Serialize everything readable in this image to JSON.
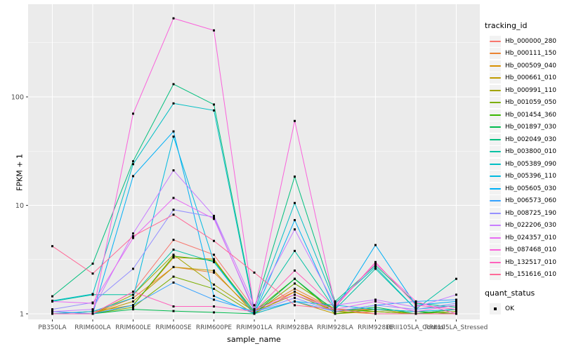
{
  "figure": {
    "background": "#FFFFFF",
    "panel_background": "#EBEBEB",
    "grid_color": "#FFFFFF",
    "tick_color": "#333333",
    "tick_label_color": "#4D4D4D",
    "text_color": "#000000",
    "marker_color": "#000000",
    "legend_key_background": "#F2F2F2"
  },
  "chart_data": {
    "type": "line",
    "title": "",
    "xlabel": "sample_name",
    "ylabel": "FPKM + 1",
    "y_scale": "log10",
    "ylim": [
      0.89,
      712
    ],
    "y_ticks": [
      1,
      10,
      100
    ],
    "y_minor_ticks": [
      3.162,
      31.62,
      316.2
    ],
    "grid": "on",
    "legend_position": "right",
    "categories": [
      "PB350LA",
      "RRIM600LA",
      "RRIM600LE",
      "RRIM600SE",
      "RRIM600PE",
      "RRIM901LA",
      "RRIM928BA",
      "RRIM928LA",
      "RRIM928LE",
      "RRII105LA_Control",
      "RRII105LA_Stressed"
    ],
    "series": [
      {
        "name": "Hb_000000_280",
        "color": "#F8766D",
        "values": [
          1.05,
          1.0,
          1.6,
          4.8,
          3.5,
          1.1,
          1.6,
          1.1,
          1.1,
          1.05,
          1.0
        ]
      },
      {
        "name": "Hb_000111_150",
        "color": "#EA8331",
        "values": [
          1.0,
          1.0,
          1.4,
          2.7,
          2.4,
          1.05,
          1.7,
          1.1,
          1.05,
          1.0,
          1.0
        ]
      },
      {
        "name": "Hb_000509_040",
        "color": "#D89000",
        "values": [
          1.0,
          1.05,
          1.2,
          3.3,
          3.2,
          1.0,
          1.6,
          1.05,
          1.0,
          1.0,
          1.05
        ]
      },
      {
        "name": "Hb_000661_010",
        "color": "#C09B00",
        "values": [
          1.0,
          1.0,
          1.3,
          2.7,
          2.5,
          1.0,
          1.3,
          1.0,
          1.05,
          1.0,
          1.1
        ]
      },
      {
        "name": "Hb_000991_110",
        "color": "#A3A500",
        "values": [
          1.0,
          1.0,
          1.5,
          3.5,
          1.86,
          1.05,
          1.5,
          1.05,
          1.1,
          1.0,
          1.0
        ]
      },
      {
        "name": "Hb_001059_050",
        "color": "#7CAE00",
        "values": [
          1.0,
          1.0,
          1.15,
          2.2,
          1.7,
          1.0,
          1.9,
          1.1,
          1.05,
          1.0,
          1.05
        ]
      },
      {
        "name": "Hb_001454_360",
        "color": "#39B600",
        "values": [
          1.0,
          1.0,
          1.2,
          3.4,
          3.1,
          1.05,
          2.1,
          1.0,
          1.1,
          1.05,
          1.0
        ]
      },
      {
        "name": "Hb_001897_030",
        "color": "#00BB4E",
        "values": [
          1.0,
          1.0,
          1.1,
          1.06,
          1.03,
          1.0,
          2.1,
          1.05,
          1.15,
          1.0,
          1.1
        ]
      },
      {
        "name": "Hb_002049_030",
        "color": "#00BF7D",
        "values": [
          1.45,
          2.9,
          25.5,
          131,
          85,
          1.1,
          18.4,
          1.3,
          2.8,
          1.25,
          1.15
        ]
      },
      {
        "name": "Hb_003800_010",
        "color": "#00C1A3",
        "values": [
          1.3,
          1.5,
          1.5,
          3.9,
          3.0,
          1.05,
          3.8,
          1.1,
          2.6,
          1.1,
          2.1
        ]
      },
      {
        "name": "Hb_005389_090",
        "color": "#00BFC4",
        "values": [
          1.32,
          1.52,
          24,
          87,
          75,
          1.05,
          10.5,
          1.25,
          2.7,
          1.1,
          1.2
        ]
      },
      {
        "name": "Hb_005396_110",
        "color": "#00BAE0",
        "values": [
          1.0,
          1.05,
          1.4,
          43,
          3.0,
          1.0,
          1.3,
          1.2,
          1.1,
          1.05,
          1.1
        ]
      },
      {
        "name": "Hb_005605_030",
        "color": "#00B0F6",
        "values": [
          1.0,
          1.0,
          18.6,
          48,
          1.46,
          1.0,
          7.3,
          1.1,
          4.3,
          1.2,
          1.3
        ]
      },
      {
        "name": "Hb_006573_060",
        "color": "#35A2FF",
        "values": [
          1.05,
          1.0,
          1.2,
          1.94,
          1.35,
          1.05,
          1.3,
          1.05,
          1.2,
          1.3,
          1.35
        ]
      },
      {
        "name": "Hb_008725_190",
        "color": "#9590FF",
        "values": [
          1.1,
          1.27,
          2.6,
          9.1,
          7.8,
          1.05,
          1.4,
          1.05,
          1.2,
          1.1,
          1.25
        ]
      },
      {
        "name": "Hb_022206_030",
        "color": "#C77CFF",
        "values": [
          1.05,
          1.1,
          5.5,
          21,
          8.0,
          1.2,
          6.0,
          1.2,
          1.35,
          1.15,
          1.5
        ]
      },
      {
        "name": "Hb_024357_010",
        "color": "#E76BF3",
        "values": [
          1.3,
          1.25,
          5.0,
          11.7,
          7.5,
          1.1,
          1.5,
          1.1,
          1.3,
          1.05,
          1.2
        ]
      },
      {
        "name": "Hb_087468_010",
        "color": "#FA62DB",
        "values": [
          1.0,
          1.0,
          70,
          530,
          410,
          1.05,
          60,
          1.2,
          2.9,
          1.3,
          1.0
        ]
      },
      {
        "name": "Hb_132517_010",
        "color": "#FF62BC",
        "values": [
          1.0,
          1.0,
          1.6,
          1.17,
          1.17,
          1.05,
          2.5,
          1.15,
          3.0,
          1.2,
          1.1
        ]
      },
      {
        "name": "Hb_151616_010",
        "color": "#FF6A98",
        "values": [
          4.2,
          2.35,
          5.2,
          8.2,
          4.7,
          2.4,
          1.2,
          1.1,
          1.0,
          1.0,
          1.0
        ]
      }
    ],
    "legend": {
      "tracking_title": "tracking_id",
      "quant_title": "quant_status",
      "quant_items": [
        {
          "label": "OK",
          "marker": "black-square"
        }
      ]
    }
  }
}
